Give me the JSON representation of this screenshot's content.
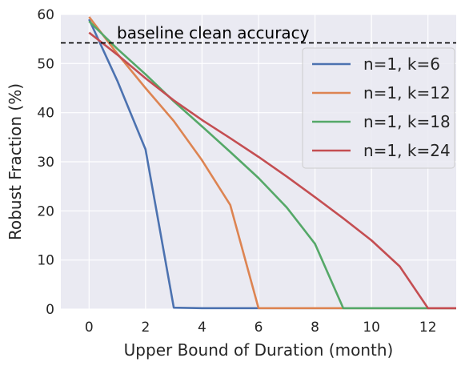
{
  "chart_data": {
    "type": "line",
    "xlabel": "Upper Bound of Duration (month)",
    "ylabel": "Robust Fraction (%)",
    "xlim": [
      -1,
      13
    ],
    "ylim": [
      0,
      60
    ],
    "x_ticks": [
      0,
      2,
      4,
      6,
      8,
      10,
      12
    ],
    "y_ticks": [
      0,
      10,
      20,
      30,
      40,
      50,
      60
    ],
    "grid": true,
    "legend_position": "top-right",
    "baseline": {
      "label": "baseline clean accuracy",
      "value": 54.2,
      "style": "dashed",
      "color": "#000000"
    },
    "series": [
      {
        "name": "n=1, k=6",
        "color": "#4c72b0",
        "x": [
          0,
          1,
          2,
          3,
          4,
          5,
          6,
          7,
          8,
          9,
          10,
          11,
          12,
          13
        ],
        "y": [
          59,
          46.5,
          32.5,
          0.3,
          0.2,
          0.2,
          0.2,
          0.2,
          0.2,
          0.2,
          0.2,
          0.2,
          0.2,
          0.2
        ]
      },
      {
        "name": "n=1, k=12",
        "color": "#dd8452",
        "x": [
          0,
          1,
          2,
          3,
          4,
          5,
          6,
          7,
          8,
          9,
          10,
          11,
          12,
          13
        ],
        "y": [
          59.5,
          52,
          45,
          38.3,
          30.3,
          21.2,
          0.2,
          0.2,
          0.2,
          0.2,
          0.2,
          0.2,
          0.2,
          0.2
        ]
      },
      {
        "name": "n=1, k=18",
        "color": "#55a868",
        "x": [
          0,
          1,
          2,
          3,
          4,
          5,
          6,
          7,
          8,
          9,
          10,
          11,
          12,
          13
        ],
        "y": [
          58.6,
          53,
          47.8,
          42.3,
          37.2,
          32,
          26.7,
          20.7,
          13.3,
          0.2,
          0.2,
          0.2,
          0.2,
          0.2
        ]
      },
      {
        "name": "n=1, k=24",
        "color": "#c44e52",
        "x": [
          0,
          1,
          2,
          3,
          4,
          5,
          6,
          7,
          8,
          9,
          10,
          11,
          12,
          13
        ],
        "y": [
          56.3,
          51.8,
          47,
          42.5,
          38.5,
          34.8,
          31,
          27,
          22.8,
          18.5,
          14,
          8.7,
          0.2,
          0.2
        ]
      }
    ]
  }
}
